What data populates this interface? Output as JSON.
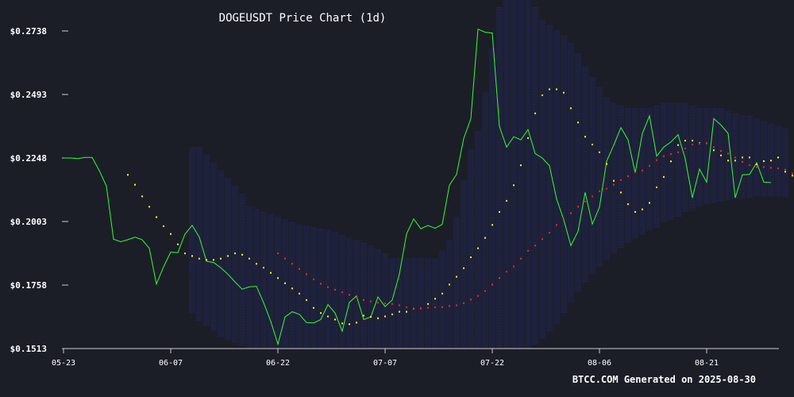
{
  "chart_data": {
    "type": "line",
    "title": "DOGEUSDT Price Chart (1d)",
    "footer": "BTCC.COM Generated on 2025-08-30",
    "y_ticks": [
      "$0.2738",
      "$0.2493",
      "$0.2248",
      "$0.2003",
      "$0.1758",
      "$0.1513"
    ],
    "x_ticks": [
      "05-23",
      "06-07",
      "06-22",
      "07-07",
      "07-22",
      "08-06",
      "08-21"
    ],
    "ylim": [
      0.1513,
      0.2738
    ],
    "grid": false,
    "colors": {
      "background": "#1b1e27",
      "price": "#33ff33",
      "sma_short": "#ffff00",
      "sma_long": "#ff2222",
      "band": "#2a2f8a",
      "axis": "#cccccc",
      "text": "#ffffff"
    },
    "series": [
      {
        "key": "price",
        "start_date": "05-23",
        "values": [
          0.2248,
          0.2248,
          0.2246,
          0.225,
          0.225,
          0.22,
          0.214,
          0.1935,
          0.1925,
          0.1933,
          0.1943,
          0.1933,
          0.19,
          0.1762,
          0.1828,
          0.1885,
          0.1883,
          0.1955,
          0.1988,
          0.1943,
          0.185,
          0.1845,
          0.1825,
          0.18,
          0.177,
          0.1742,
          0.1751,
          0.1753,
          0.169,
          0.1618,
          0.153,
          0.1635,
          0.1655,
          0.1645,
          0.1613,
          0.1612,
          0.1625,
          0.1683,
          0.165,
          0.158,
          0.1691,
          0.1716,
          0.1625,
          0.1635,
          0.1712,
          0.1675,
          0.17,
          0.18,
          0.1955,
          0.2013,
          0.1975,
          0.1988,
          0.1977,
          0.1992,
          0.2143,
          0.2185,
          0.2323,
          0.24,
          0.2745,
          0.2733,
          0.273,
          0.237,
          0.229,
          0.233,
          0.2318,
          0.2358,
          0.2265,
          0.2248,
          0.2218,
          0.209,
          0.201,
          0.191,
          0.1965,
          0.2115,
          0.1993,
          0.2058,
          0.2235,
          0.2298,
          0.2365,
          0.2318,
          0.219,
          0.2342,
          0.241,
          0.2255,
          0.229,
          0.231,
          0.2338,
          0.2245,
          0.2095,
          0.2205,
          0.2155,
          0.24,
          0.2375,
          0.2343,
          0.2095,
          0.2183,
          0.2185,
          0.223,
          0.2155,
          0.2153
        ]
      },
      {
        "key": "sma_short",
        "start_date": "06-01",
        "values": [
          0.2183,
          0.2145,
          0.21,
          0.206,
          0.202,
          0.1985,
          0.1955,
          0.1915,
          0.188,
          0.187,
          0.186,
          0.1855,
          0.1855,
          0.186,
          0.187,
          0.188,
          0.1875,
          0.186,
          0.184,
          0.1825,
          0.1805,
          0.1785,
          0.1765,
          0.1745,
          0.1725,
          0.17,
          0.167,
          0.165,
          0.1637,
          0.1625,
          0.161,
          0.1607,
          0.1613,
          0.164,
          0.1635,
          0.163,
          0.1637,
          0.1645,
          0.1655,
          0.1655,
          0.1667,
          0.1668,
          0.1685,
          0.1705,
          0.1725,
          0.176,
          0.179,
          0.1823,
          0.1865,
          0.19,
          0.194,
          0.199,
          0.204,
          0.2083,
          0.2143,
          0.222,
          0.2325,
          0.242,
          0.249,
          0.2513,
          0.2513,
          0.25,
          0.244,
          0.2385,
          0.233,
          0.23,
          0.227,
          0.2225,
          0.216,
          0.2115,
          0.207,
          0.204,
          0.205,
          0.2075,
          0.2135,
          0.2175,
          0.2235,
          0.2298,
          0.2315,
          0.2315,
          0.2305,
          0.2305,
          0.2278,
          0.2258,
          0.2238,
          0.2238,
          0.225,
          0.225,
          0.2223,
          0.2236,
          0.2238,
          0.225,
          0.2195,
          0.218
        ]
      },
      {
        "key": "sma_long",
        "start_date": "06-22",
        "values": [
          0.188,
          0.186,
          0.184,
          0.182,
          0.18,
          0.178,
          0.1763,
          0.175,
          0.174,
          0.173,
          0.172,
          0.171,
          0.17,
          0.1695,
          0.169,
          0.1687,
          0.1685,
          0.168,
          0.1672,
          0.1668,
          0.1668,
          0.167,
          0.1672,
          0.1673,
          0.1677,
          0.168,
          0.1688,
          0.1702,
          0.1716,
          0.1735,
          0.176,
          0.1785,
          0.181,
          0.183,
          0.186,
          0.189,
          0.191,
          0.1935,
          0.196,
          0.199,
          0.201,
          0.2035,
          0.206,
          0.208,
          0.21,
          0.212,
          0.213,
          0.2145,
          0.2163,
          0.2178,
          0.2193,
          0.22,
          0.2218,
          0.224,
          0.2255,
          0.2263,
          0.227,
          0.2285,
          0.23,
          0.2303,
          0.2305,
          0.229,
          0.2275,
          0.2265,
          0.225,
          0.2233,
          0.222,
          0.2213,
          0.2213,
          0.221,
          0.2208,
          0.2203,
          0.2188
        ]
      },
      {
        "key": "band",
        "start_date": "06-10",
        "upper": [
          0.229,
          0.229,
          0.226,
          0.223,
          0.22,
          0.217,
          0.214,
          0.211,
          0.206,
          0.205,
          0.204,
          0.203,
          0.202,
          0.201,
          0.2,
          0.199,
          0.1985,
          0.198,
          0.1975,
          0.197,
          0.196,
          0.195,
          0.194,
          0.193,
          0.192,
          0.191,
          0.1895,
          0.188,
          0.186,
          0.186,
          0.186,
          0.186,
          0.186,
          0.186,
          0.186,
          0.189,
          0.193,
          0.202,
          0.216,
          0.228,
          0.235,
          0.25,
          0.267,
          0.283,
          0.289,
          0.293,
          0.292,
          0.289,
          0.283,
          0.278,
          0.276,
          0.274,
          0.272,
          0.269,
          0.265,
          0.26,
          0.256,
          0.252,
          0.248,
          0.246,
          0.245,
          0.244,
          0.244,
          0.244,
          0.244,
          0.245,
          0.246,
          0.246,
          0.246,
          0.246,
          0.245,
          0.244,
          0.244,
          0.244,
          0.244,
          0.243,
          0.242,
          0.241,
          0.241,
          0.24,
          0.239,
          0.238,
          0.237,
          0.236
        ],
        "lower": [
          0.165,
          0.162,
          0.16,
          0.158,
          0.156,
          0.1545,
          0.1535,
          0.1525,
          0.1513,
          0.1513,
          0.1513,
          0.1513,
          0.1513,
          0.1513,
          0.1513,
          0.1513,
          0.1513,
          0.1513,
          0.1513,
          0.1513,
          0.1513,
          0.1513,
          0.1513,
          0.1513,
          0.1513,
          0.1513,
          0.1513,
          0.1513,
          0.1513,
          0.1513,
          0.1513,
          0.1513,
          0.1513,
          0.1513,
          0.1513,
          0.1513,
          0.1513,
          0.1513,
          0.1513,
          0.1513,
          0.1513,
          0.1513,
          0.1513,
          0.1513,
          0.1513,
          0.1513,
          0.1513,
          0.1513,
          0.153,
          0.155,
          0.158,
          0.161,
          0.165,
          0.169,
          0.173,
          0.177,
          0.18,
          0.183,
          0.1855,
          0.188,
          0.19,
          0.192,
          0.194,
          0.195,
          0.197,
          0.198,
          0.2,
          0.201,
          0.202,
          0.204,
          0.205,
          0.206,
          0.207,
          0.2075,
          0.208,
          0.2085,
          0.209,
          0.209,
          0.2095,
          0.21,
          0.21,
          0.21,
          0.21,
          0.21
        ]
      }
    ]
  }
}
